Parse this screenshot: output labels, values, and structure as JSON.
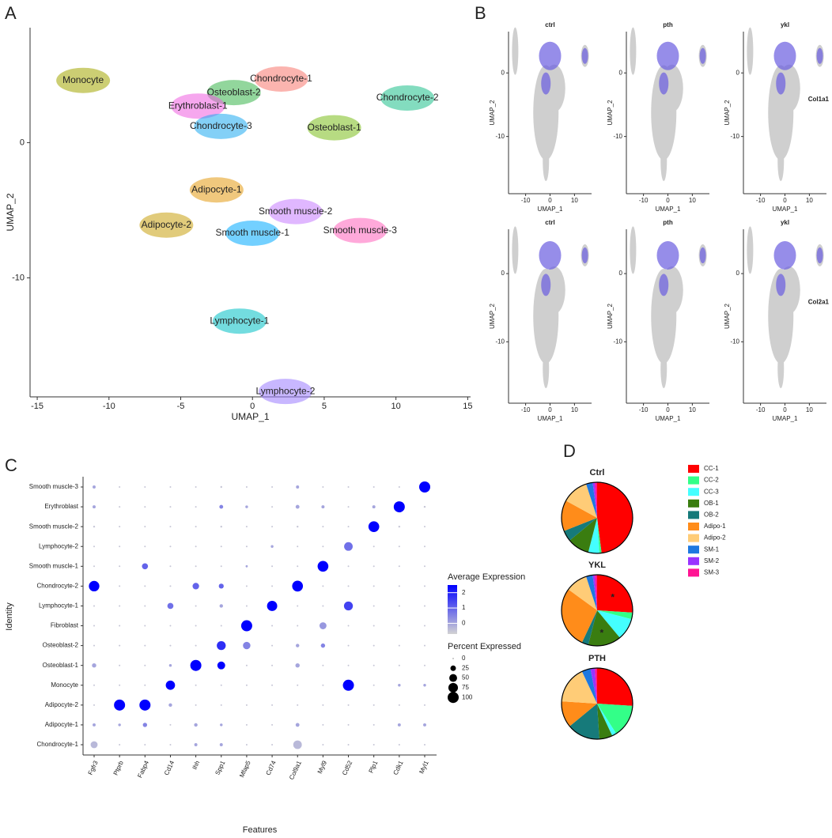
{
  "panel_labels": [
    "A",
    "B",
    "C",
    "D"
  ],
  "chart_data": [
    {
      "type": "umap",
      "xlabel": "UMAP_1",
      "ylabel": "UMAP_2",
      "xlim": [
        -15.5,
        15.2
      ],
      "ylim": [
        -18.8,
        8.5
      ],
      "xticks": [
        -15,
        -10,
        -5,
        0,
        5,
        10,
        15
      ],
      "yticks": [
        0,
        -10
      ],
      "clusters": [
        "Monocyte",
        "Chondrocyte-1",
        "Osteoblast-2",
        "Erythroblast-1",
        "Chondrocyte-3",
        "Chondrocyte-2",
        "Osteoblast-1",
        "Adipocyte-1",
        "Smooth muscle-2",
        "Smooth muscle-3",
        "Smooth muscle-1",
        "Adipocyte-2",
        "Lymphocyte-1",
        "Lymphocyte-2"
      ],
      "x": [
        -11.8,
        2.0,
        -1.3,
        -3.8,
        -2.2,
        10.8,
        5.7,
        -2.5,
        3.0,
        7.5,
        0.0,
        -6.0,
        -0.9,
        2.3
      ],
      "y": [
        4.6,
        4.7,
        3.7,
        2.7,
        1.2,
        3.3,
        1.1,
        -3.5,
        -5.1,
        -6.5,
        -6.7,
        -6.1,
        -13.2,
        -18.4
      ],
      "colors": [
        "#a3a500",
        "#f8766d",
        "#39b54a",
        "#ee5fe0",
        "#1eaaf1",
        "#1dc08a",
        "#7cbd1b",
        "#e49a12",
        "#c77cff",
        "#ff62bc",
        "#00a9ff",
        "#c9a10f",
        "#00bfc4",
        "#9a7cff"
      ]
    },
    {
      "type": "feature",
      "xlabel": "UMAP_1",
      "ylabel": "UMAP_2",
      "conditions": [
        "ctrl",
        "pth",
        "ykl"
      ],
      "genes": [
        "Col1a1",
        "Col2a1"
      ],
      "xlim": [
        -17,
        17
      ],
      "ylim": [
        -19,
        6.5
      ],
      "xticks": [
        -10,
        0,
        10
      ],
      "yticks": [
        0,
        -10
      ]
    },
    {
      "type": "dot",
      "xlabel": "Features",
      "ylabel": "Identity",
      "features": [
        "Fgfr3",
        "Ptprb",
        "Fabp4",
        "Cd14",
        "Ihh",
        "Spp1",
        "Mfap5",
        "Cd74",
        "Col9a1",
        "Myl9",
        "Cd52",
        "Plp1",
        "Cdk1",
        "Myl1"
      ],
      "identities": [
        "Smooth muscle-3",
        "Erythroblast",
        "Smooth muscle-2",
        "Lymphocyte-2",
        "Smooth muscle-1",
        "Chondrocyte-2",
        "Lymphocyte-1",
        "Fibroblast",
        "Osteoblast-2",
        "Osteoblast-1",
        "Monocyte",
        "Adipocyte-2",
        "Adipocyte-1",
        "Chondrocyte-1"
      ],
      "percent": [
        [
          8,
          2,
          2,
          2,
          2,
          3,
          2,
          2,
          8,
          2,
          2,
          2,
          2,
          100
        ],
        [
          8,
          2,
          2,
          2,
          2,
          12,
          6,
          2,
          12,
          8,
          2,
          8,
          100,
          3
        ],
        [
          3,
          2,
          2,
          2,
          2,
          3,
          2,
          2,
          3,
          2,
          2,
          95,
          3,
          2
        ],
        [
          2,
          2,
          2,
          2,
          2,
          2,
          2,
          6,
          2,
          2,
          60,
          2,
          2,
          2
        ],
        [
          2,
          2,
          30,
          2,
          2,
          2,
          4,
          2,
          2,
          95,
          2,
          2,
          2,
          2
        ],
        [
          90,
          2,
          2,
          2,
          35,
          20,
          2,
          2,
          95,
          2,
          2,
          2,
          2,
          2
        ],
        [
          2,
          2,
          2,
          30,
          2,
          10,
          2,
          85,
          2,
          2,
          65,
          2,
          2,
          2
        ],
        [
          2,
          2,
          2,
          2,
          2,
          2,
          100,
          2,
          2,
          40,
          2,
          2,
          2,
          2
        ],
        [
          2,
          2,
          2,
          2,
          2,
          65,
          45,
          2,
          10,
          15,
          2,
          2,
          2,
          2
        ],
        [
          15,
          2,
          2,
          6,
          100,
          50,
          2,
          2,
          15,
          2,
          2,
          2,
          2,
          2
        ],
        [
          2,
          2,
          2,
          70,
          2,
          2,
          2,
          2,
          2,
          2,
          100,
          2,
          6,
          6
        ],
        [
          2,
          100,
          100,
          10,
          2,
          2,
          2,
          2,
          2,
          2,
          2,
          2,
          2,
          2
        ],
        [
          8,
          6,
          15,
          2,
          10,
          6,
          2,
          2,
          12,
          2,
          2,
          2,
          8,
          8
        ],
        [
          40,
          2,
          2,
          2,
          8,
          8,
          2,
          2,
          60,
          2,
          2,
          2,
          2,
          2
        ]
      ],
      "expression": [
        [
          0,
          -0.5,
          -0.5,
          -0.5,
          -0.5,
          -0.5,
          -0.5,
          -0.5,
          0,
          -0.5,
          -0.5,
          -0.5,
          -0.5,
          2.5
        ],
        [
          0,
          -0.5,
          -0.5,
          -0.5,
          -0.5,
          0.5,
          0,
          -0.5,
          0,
          0,
          -0.5,
          0,
          2.5,
          -0.5
        ],
        [
          -0.5,
          -0.5,
          -0.5,
          -0.5,
          -0.5,
          -0.5,
          -0.5,
          -0.5,
          -0.5,
          -0.5,
          -0.5,
          2.5,
          -0.5,
          -0.5
        ],
        [
          -0.5,
          -0.5,
          -0.5,
          -0.5,
          -0.5,
          -0.5,
          -0.5,
          0,
          -0.5,
          -0.5,
          0.8,
          -0.5,
          -0.5,
          -0.5
        ],
        [
          -0.5,
          -0.5,
          1,
          -0.5,
          -0.5,
          -0.5,
          0,
          -0.5,
          -0.5,
          2.5,
          -0.5,
          -0.5,
          -0.5,
          -0.5
        ],
        [
          2.5,
          -0.5,
          -0.5,
          -0.5,
          1,
          1,
          -0.5,
          -0.5,
          2.5,
          -0.5,
          -0.5,
          -0.5,
          -0.5,
          -0.5
        ],
        [
          -0.5,
          -0.5,
          -0.5,
          0.8,
          -0.5,
          0,
          -0.5,
          2.5,
          -0.5,
          -0.5,
          1.5,
          -0.5,
          -0.5,
          -0.5
        ],
        [
          -0.5,
          -0.5,
          -0.5,
          -0.5,
          -0.5,
          -0.5,
          2.5,
          -0.5,
          -0.5,
          0.2,
          -0.5,
          -0.5,
          -0.5,
          -0.5
        ],
        [
          -0.5,
          -0.5,
          -0.5,
          -0.5,
          -0.5,
          1.8,
          0.5,
          -0.5,
          0,
          0.5,
          -0.5,
          -0.5,
          -0.5,
          -0.5
        ],
        [
          0,
          -0.5,
          -0.5,
          0,
          2.5,
          2.5,
          -0.5,
          -0.5,
          0,
          -0.5,
          -0.5,
          -0.5,
          -0.5,
          -0.5
        ],
        [
          -0.5,
          -0.5,
          -0.5,
          2.5,
          -0.5,
          -0.5,
          -0.5,
          -0.5,
          -0.5,
          -0.5,
          2.5,
          -0.5,
          0,
          0
        ],
        [
          -0.5,
          2.5,
          2.5,
          0,
          -0.5,
          -0.5,
          -0.5,
          -0.5,
          -0.5,
          -0.5,
          -0.5,
          -0.5,
          -0.5,
          -0.5
        ],
        [
          0,
          0,
          0.5,
          -0.5,
          0,
          0,
          -0.5,
          -0.5,
          0,
          -0.5,
          -0.5,
          -0.5,
          0,
          0
        ],
        [
          -0.3,
          -0.5,
          -0.5,
          -0.5,
          0,
          0,
          -0.5,
          -0.5,
          -0.3,
          -0.5,
          -0.5,
          -0.5,
          -0.5,
          -0.5
        ]
      ],
      "color_title": "Average Expression",
      "colors": [
        "#d3d3d3",
        "#0000ff"
      ],
      "color_lim": [
        -0.7,
        2.5
      ],
      "color_ticks": [
        0,
        1,
        2
      ],
      "size_title": "Percent Expressed",
      "size_ticks": [
        0,
        25,
        50,
        75,
        100
      ]
    },
    {
      "type": "pie",
      "categories": [
        "CC-1",
        "CC-2",
        "CC-3",
        "OB-1",
        "OB-2",
        "Adipo-1",
        "Adipo-2",
        "SM-1",
        "SM-2",
        "SM-3"
      ],
      "colors": [
        "#ff0000",
        "#33ff88",
        "#44ffff",
        "#3a7d10",
        "#167a7a",
        "#ff8c1a",
        "#ffcc77",
        "#1e78e0",
        "#9933ff",
        "#ff1493"
      ],
      "pies": [
        {
          "title": "Ctrl",
          "values": [
            48,
            1,
            5,
            10,
            5,
            14,
            12,
            3,
            1,
            1
          ]
        },
        {
          "title": "YKL",
          "values": [
            26,
            3,
            10,
            15,
            3,
            28,
            10,
            3,
            1,
            1
          ],
          "annotations": [
            {
              "text": "*",
              "category": "CC-1"
            },
            {
              "text": "*",
              "category": "OB-1"
            }
          ]
        },
        {
          "title": "PTH",
          "values": [
            26,
            15,
            2,
            6,
            15,
            12,
            17,
            4,
            2,
            1
          ]
        }
      ]
    }
  ]
}
